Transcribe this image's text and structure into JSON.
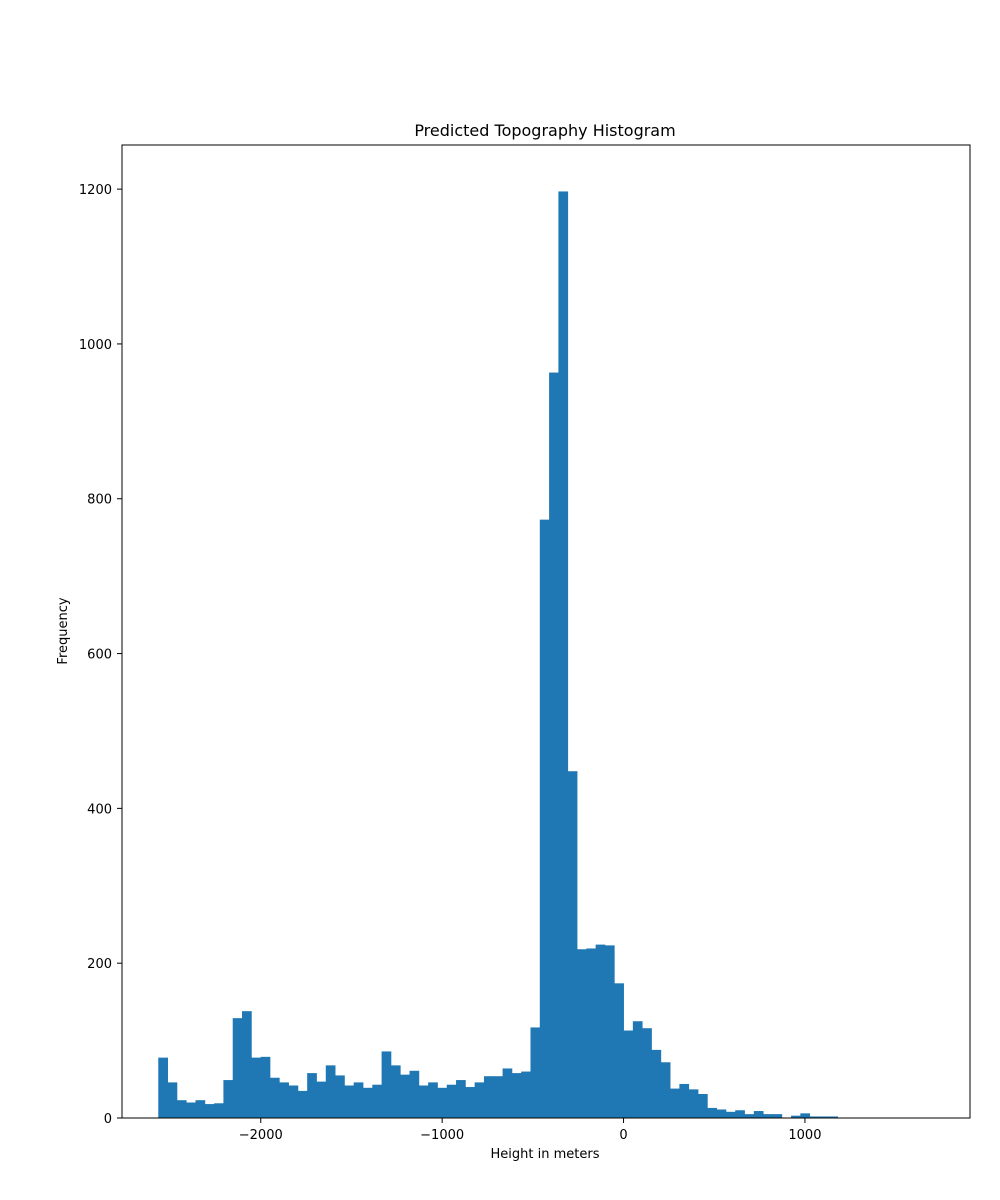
{
  "chart_data": {
    "type": "bar",
    "title": "Predicted Topography Histogram",
    "xlabel": "Height in meters",
    "ylabel": "Frequency",
    "xlim": [
      -2765,
      1910
    ],
    "ylim": [
      0,
      1257
    ],
    "bin_start": -2565,
    "bin_width": 51.3,
    "values": [
      78,
      46,
      23,
      20,
      23,
      18,
      19,
      49,
      129,
      138,
      78,
      79,
      52,
      46,
      42,
      35,
      58,
      47,
      68,
      55,
      42,
      46,
      39,
      43,
      86,
      68,
      56,
      61,
      42,
      46,
      39,
      43,
      49,
      40,
      46,
      54,
      54,
      64,
      58,
      60,
      117,
      773,
      963,
      1197,
      448,
      218,
      219,
      224,
      223,
      174,
      113,
      125,
      116,
      88,
      72,
      38,
      44,
      37,
      31,
      13,
      11,
      8,
      10,
      5,
      9,
      5,
      5,
      0,
      3,
      6,
      2,
      2,
      2
    ],
    "x_ticks": [
      {
        "value": -2000,
        "label": "−2000"
      },
      {
        "value": -1000,
        "label": "−1000"
      },
      {
        "value": 0,
        "label": "0"
      },
      {
        "value": 1000,
        "label": "1000"
      }
    ],
    "y_ticks": [
      {
        "value": 0,
        "label": "0"
      },
      {
        "value": 200,
        "label": "200"
      },
      {
        "value": 400,
        "label": "400"
      },
      {
        "value": 600,
        "label": "600"
      },
      {
        "value": 800,
        "label": "800"
      },
      {
        "value": 1000,
        "label": "1000"
      },
      {
        "value": 1200,
        "label": "1200"
      }
    ],
    "bar_color": "#1f77b4",
    "grid": false,
    "legend": "none"
  }
}
